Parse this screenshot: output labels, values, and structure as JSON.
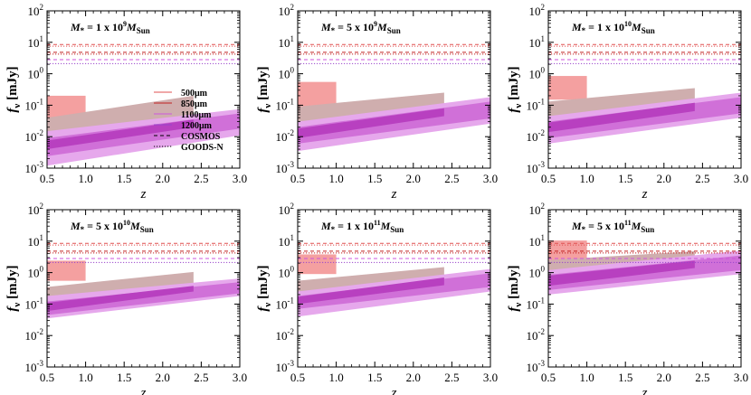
{
  "chart_data": {
    "type": "area",
    "x_tick_labels": [
      "0.5",
      "1.0",
      "1.5",
      "2.0",
      "2.5",
      "3.0"
    ],
    "x_ticks": [
      0.5,
      1.0,
      1.5,
      2.0,
      2.5,
      3.0
    ],
    "xlim": [
      0.5,
      3.0
    ],
    "ylim_log10": [
      -3,
      2
    ],
    "y_tick_exponents": [
      -3,
      -2,
      -1,
      0,
      1,
      2
    ],
    "y_tick_base": "10",
    "xlabel": "z",
    "ylabel_main": "f",
    "ylabel_sub": "ν",
    "ylabel_unit": "[mJy]",
    "legend": {
      "placement": "center (first panel)",
      "entries": [
        {
          "label": "500μm",
          "color": "#e05050",
          "dash": "solid"
        },
        {
          "label": "850μm",
          "color": "#c02020",
          "dash": "solid"
        },
        {
          "label": "1100μm",
          "color": "#cc55dd",
          "dash": "solid"
        },
        {
          "label": "1200μm",
          "color": "#9944cc",
          "dash": "solid"
        },
        {
          "label": "COSMOS",
          "color": "#000000",
          "dash": "dashed"
        },
        {
          "label": "GOODS-N",
          "color": "#000000",
          "dash": "dotted"
        }
      ]
    },
    "detection_limits_mJy": [
      {
        "band": "500μm",
        "survey": "COSMOS",
        "value": 8.5,
        "color": "#e05050",
        "dash": "dashed"
      },
      {
        "band": "500μm",
        "survey": "GOODS-N",
        "value": 7.5,
        "color": "#e05050",
        "dash": "dotted"
      },
      {
        "band": "850μm",
        "survey": "COSMOS",
        "value": 4.8,
        "color": "#c02020",
        "dash": "dashed"
      },
      {
        "band": "850μm",
        "survey": "GOODS-N",
        "value": 4.2,
        "color": "#c02020",
        "dash": "dotted"
      },
      {
        "band": "1100μm",
        "survey": "COSMOS",
        "value": 2.8,
        "color": "#cc55dd",
        "dash": "dashed"
      },
      {
        "band": "1200μm",
        "survey": "GOODS-N",
        "value": 2.1,
        "color": "#9944cc",
        "dash": "dotted"
      }
    ],
    "colors": {
      "box_500": "#f4a0a0",
      "brown_band": "#cfaeae",
      "magenta_outer": "#e6a8ec",
      "magenta_inner": "#d070d8",
      "magenta_core": "#b840c0"
    },
    "panels": [
      {
        "mass_coeff": "1",
        "mass_exp": "9",
        "box_500": {
          "x": [
            0.5,
            1.0
          ],
          "y": [
            0.03,
            0.2
          ]
        },
        "brown_band": {
          "x": [
            0.5,
            2.4
          ],
          "lo": [
            0.0035,
            0.028
          ],
          "hi": [
            0.04,
            0.2
          ]
        },
        "magenta_outer": {
          "x": [
            0.5,
            3.0
          ],
          "lo": [
            0.0012,
            0.011
          ],
          "hi": [
            0.015,
            0.075
          ]
        },
        "magenta_inner": {
          "x": [
            0.5,
            3.0
          ],
          "lo": [
            0.0024,
            0.018
          ],
          "hi": [
            0.009,
            0.055
          ]
        },
        "magenta_core": {
          "x": [
            0.5,
            2.4
          ],
          "lo": [
            0.004,
            0.02
          ],
          "hi": [
            0.0075,
            0.035
          ]
        }
      },
      {
        "mass_coeff": "5",
        "mass_exp": "9",
        "box_500": {
          "x": [
            0.5,
            1.0
          ],
          "y": [
            0.08,
            0.55
          ]
        },
        "brown_band": {
          "x": [
            0.5,
            2.4
          ],
          "lo": [
            0.008,
            0.06
          ],
          "hi": [
            0.09,
            0.25
          ]
        },
        "magenta_outer": {
          "x": [
            0.5,
            3.0
          ],
          "lo": [
            0.0035,
            0.026
          ],
          "hi": [
            0.03,
            0.18
          ]
        },
        "magenta_inner": {
          "x": [
            0.5,
            3.0
          ],
          "lo": [
            0.006,
            0.038
          ],
          "hi": [
            0.02,
            0.13
          ]
        },
        "magenta_core": {
          "x": [
            0.5,
            2.4
          ],
          "lo": [
            0.009,
            0.045
          ],
          "hi": [
            0.018,
            0.08
          ]
        }
      },
      {
        "mass_coeff": "1",
        "mass_exp": "10",
        "box_500": {
          "x": [
            0.5,
            1.0
          ],
          "y": [
            0.15,
            0.85
          ]
        },
        "brown_band": {
          "x": [
            0.5,
            2.4
          ],
          "lo": [
            0.012,
            0.09
          ],
          "hi": [
            0.13,
            0.35
          ]
        },
        "magenta_outer": {
          "x": [
            0.5,
            3.0
          ],
          "lo": [
            0.006,
            0.04
          ],
          "hi": [
            0.045,
            0.25
          ]
        },
        "magenta_inner": {
          "x": [
            0.5,
            3.0
          ],
          "lo": [
            0.009,
            0.055
          ],
          "hi": [
            0.03,
            0.18
          ]
        },
        "magenta_core": {
          "x": [
            0.5,
            2.4
          ],
          "lo": [
            0.014,
            0.065
          ],
          "hi": [
            0.028,
            0.12
          ]
        }
      },
      {
        "mass_coeff": "5",
        "mass_exp": "10",
        "box_500": {
          "x": [
            0.5,
            1.0
          ],
          "y": [
            0.55,
            2.4
          ]
        },
        "brown_band": {
          "x": [
            0.5,
            2.4
          ],
          "lo": [
            0.06,
            0.35
          ],
          "hi": [
            0.35,
            1.05
          ]
        },
        "magenta_outer": {
          "x": [
            0.5,
            3.0
          ],
          "lo": [
            0.035,
            0.18
          ],
          "hi": [
            0.18,
            0.65
          ]
        },
        "magenta_inner": {
          "x": [
            0.5,
            3.0
          ],
          "lo": [
            0.045,
            0.22
          ],
          "hi": [
            0.12,
            0.5
          ]
        },
        "magenta_core": {
          "x": [
            0.5,
            2.4
          ],
          "lo": [
            0.06,
            0.25
          ],
          "hi": [
            0.11,
            0.38
          ]
        }
      },
      {
        "mass_coeff": "1",
        "mass_exp": "11",
        "box_500": {
          "x": [
            0.5,
            1.0
          ],
          "y": [
            0.9,
            3.8
          ]
        },
        "brown_band": {
          "x": [
            0.5,
            2.4
          ],
          "lo": [
            0.1,
            0.6
          ],
          "hi": [
            0.55,
            1.5
          ]
        },
        "magenta_outer": {
          "x": [
            0.5,
            3.0
          ],
          "lo": [
            0.04,
            0.25
          ],
          "hi": [
            0.25,
            1.3
          ]
        },
        "magenta_inner": {
          "x": [
            0.5,
            3.0
          ],
          "lo": [
            0.07,
            0.35
          ],
          "hi": [
            0.18,
            0.95
          ]
        },
        "magenta_core": {
          "x": [
            0.5,
            2.4
          ],
          "lo": [
            0.1,
            0.4
          ],
          "hi": [
            0.17,
            0.7
          ]
        }
      },
      {
        "mass_coeff": "5",
        "mass_exp": "11",
        "box_500": {
          "x": [
            0.5,
            1.0
          ],
          "y": [
            2.5,
            10.5
          ]
        },
        "brown_band": {
          "x": [
            0.5,
            2.4
          ],
          "lo": [
            0.45,
            2.2
          ],
          "hi": [
            2.5,
            4.8
          ]
        },
        "magenta_outer": {
          "x": [
            0.5,
            3.0
          ],
          "lo": [
            0.2,
            0.9
          ],
          "hi": [
            1.2,
            5.0
          ]
        },
        "magenta_inner": {
          "x": [
            0.5,
            3.0
          ],
          "lo": [
            0.28,
            1.2
          ],
          "hi": [
            0.85,
            3.5
          ]
        },
        "magenta_core": {
          "x": [
            0.5,
            2.4
          ],
          "lo": [
            0.38,
            1.4
          ],
          "hi": [
            0.8,
            2.4
          ]
        }
      }
    ]
  }
}
